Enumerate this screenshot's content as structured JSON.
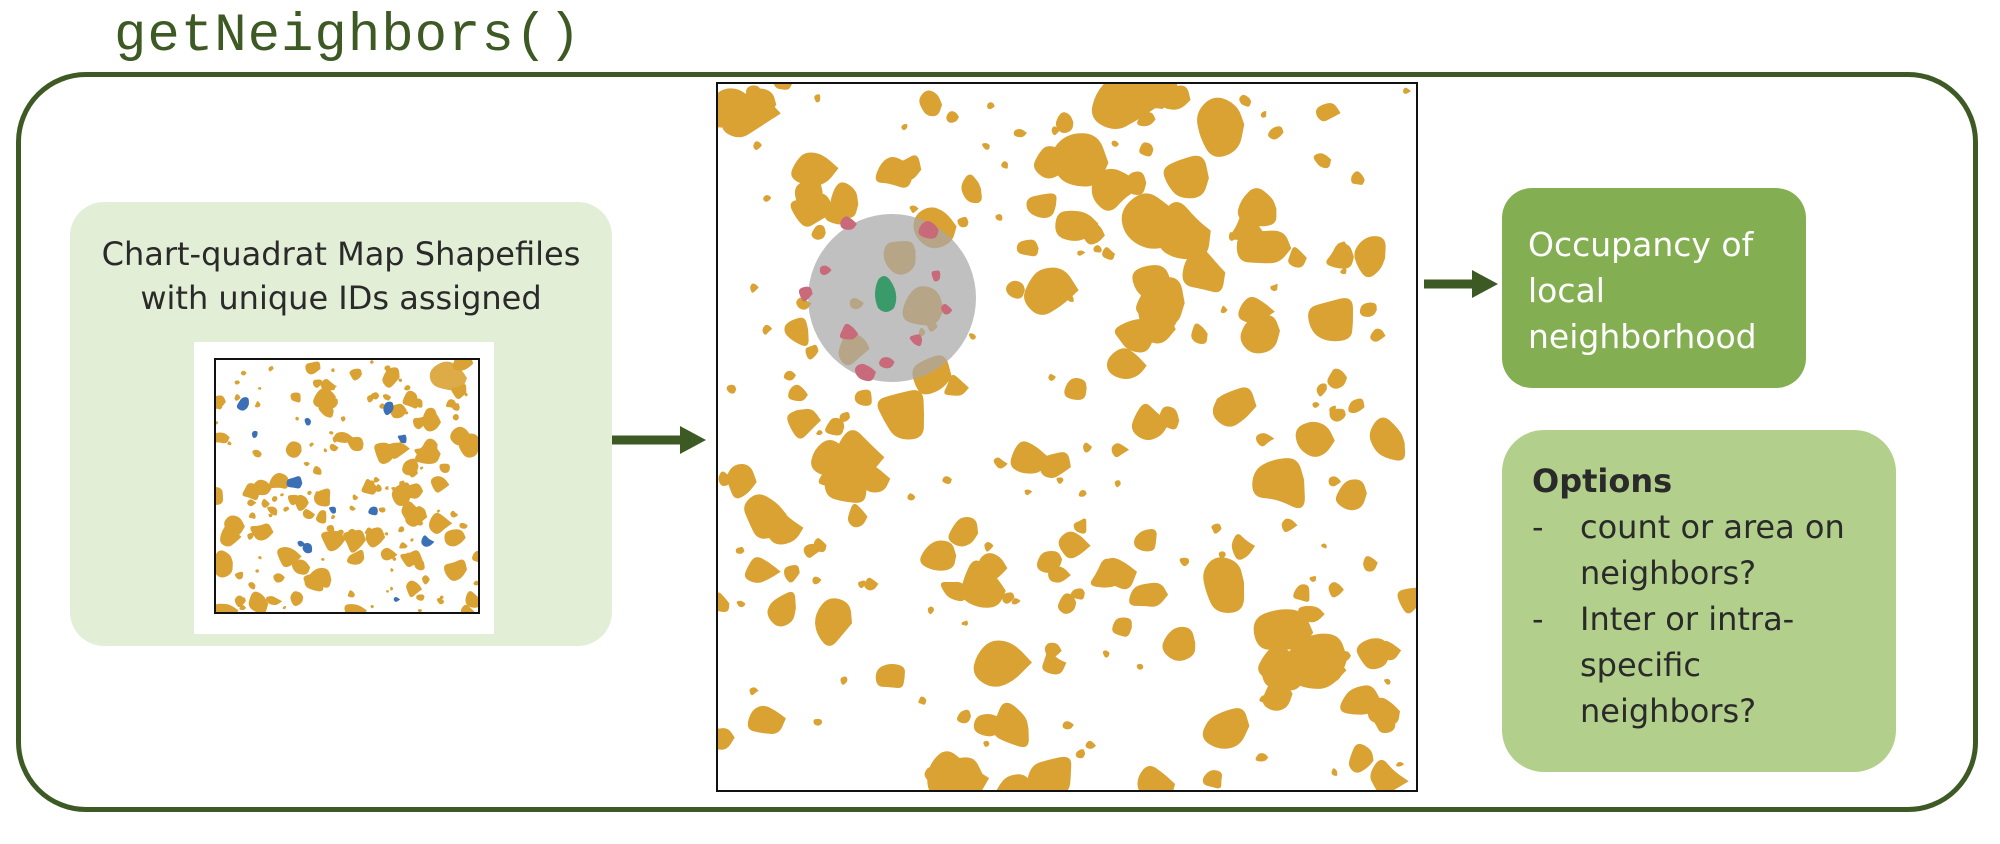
{
  "title": "getNeighbors()",
  "source": {
    "label_line1": "Chart-quadrat Map Shapefiles",
    "label_line2": "with unique IDs assigned"
  },
  "result": {
    "line1": "Occupancy of",
    "line2": "local",
    "line3": "neighborhood"
  },
  "options": {
    "heading": "Options",
    "items": [
      {
        "dash": "-",
        "line1": "count  or area on",
        "line2": "neighbors?",
        "line3": ""
      },
      {
        "dash": "-",
        "line1": "Inter or intra-",
        "line2": "specific",
        "line3": "neighbors?"
      }
    ]
  },
  "colors": {
    "frame": "#3d5a24",
    "source_bg": "#e3eed6",
    "result_bg": "#84ae52",
    "options_bg": "#b2d08c",
    "patch": "#d9a233",
    "focal": "#3a9a6a",
    "neighbor": "#c86a7a",
    "buffer": "#a8a8a8",
    "other_species": "#3b6fb6"
  }
}
